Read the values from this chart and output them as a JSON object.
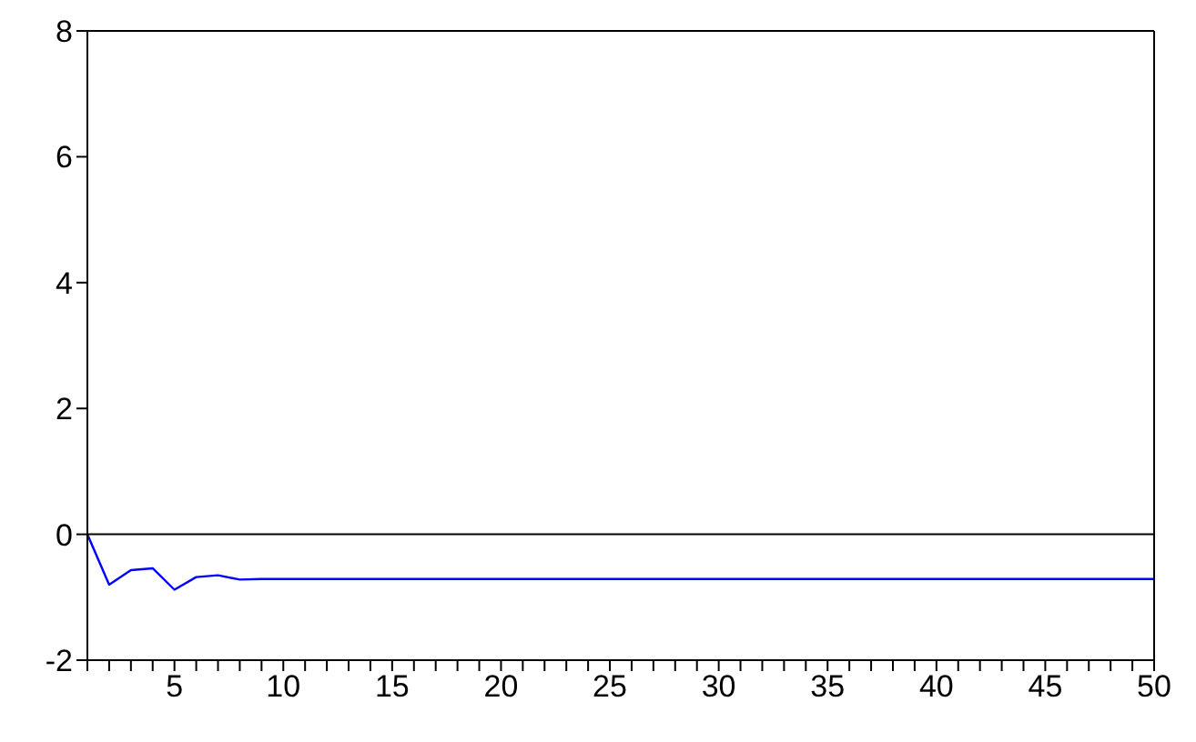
{
  "chart_data": {
    "type": "line",
    "x": [
      1,
      2,
      3,
      4,
      5,
      6,
      7,
      8,
      9,
      10,
      11,
      12,
      13,
      14,
      15,
      16,
      17,
      18,
      19,
      20,
      21,
      22,
      23,
      24,
      25,
      26,
      27,
      28,
      29,
      30,
      31,
      32,
      33,
      34,
      35,
      36,
      37,
      38,
      39,
      40,
      41,
      42,
      43,
      44,
      45,
      46,
      47,
      48,
      49,
      50
    ],
    "series": [
      {
        "color": "#0000ff",
        "values": [
          0,
          -0.8,
          -0.57,
          -0.54,
          -0.88,
          -0.68,
          -0.65,
          -0.72,
          -0.71,
          -0.71,
          -0.71,
          -0.71,
          -0.71,
          -0.71,
          -0.71,
          -0.71,
          -0.71,
          -0.71,
          -0.71,
          -0.71,
          -0.71,
          -0.71,
          -0.71,
          -0.71,
          -0.71,
          -0.71,
          -0.71,
          -0.71,
          -0.71,
          -0.71,
          -0.71,
          -0.71,
          -0.71,
          -0.71,
          -0.71,
          -0.71,
          -0.71,
          -0.71,
          -0.71,
          -0.71,
          -0.71,
          -0.71,
          -0.71,
          -0.71,
          -0.71,
          -0.71,
          -0.71,
          -0.71,
          -0.71,
          -0.71
        ]
      }
    ],
    "xlim": [
      1,
      50
    ],
    "xticks": [
      {
        "value": 1,
        "label": null
      },
      {
        "value": 2,
        "label": null
      },
      {
        "value": 3,
        "label": null
      },
      {
        "value": 4,
        "label": null
      },
      5,
      {
        "value": 6,
        "label": null
      },
      {
        "value": 7,
        "label": null
      },
      {
        "value": 8,
        "label": null
      },
      {
        "value": 9,
        "label": null
      },
      10,
      {
        "value": 11,
        "label": null
      },
      {
        "value": 12,
        "label": null
      },
      {
        "value": 13,
        "label": null
      },
      {
        "value": 14,
        "label": null
      },
      15,
      {
        "value": 16,
        "label": null
      },
      {
        "value": 17,
        "label": null
      },
      {
        "value": 18,
        "label": null
      },
      {
        "value": 19,
        "label": null
      },
      20,
      {
        "value": 21,
        "label": null
      },
      {
        "value": 22,
        "label": null
      },
      {
        "value": 23,
        "label": null
      },
      {
        "value": 24,
        "label": null
      },
      25,
      {
        "value": 26,
        "label": null
      },
      {
        "value": 27,
        "label": null
      },
      {
        "value": 28,
        "label": null
      },
      {
        "value": 29,
        "label": null
      },
      30,
      {
        "value": 31,
        "label": null
      },
      {
        "value": 32,
        "label": null
      },
      {
        "value": 33,
        "label": null
      },
      {
        "value": 34,
        "label": null
      },
      35,
      {
        "value": 36,
        "label": null
      },
      {
        "value": 37,
        "label": null
      },
      {
        "value": 38,
        "label": null
      },
      {
        "value": 39,
        "label": null
      },
      40,
      {
        "value": 41,
        "label": null
      },
      {
        "value": 42,
        "label": null
      },
      {
        "value": 43,
        "label": null
      },
      {
        "value": 44,
        "label": null
      },
      45,
      {
        "value": 46,
        "label": null
      },
      {
        "value": 47,
        "label": null
      },
      {
        "value": 48,
        "label": null
      },
      {
        "value": 49,
        "label": null
      },
      50
    ],
    "ylim": [
      -2,
      8
    ],
    "yticks": [
      -2,
      0,
      2,
      4,
      6,
      8
    ],
    "ref_lines": [
      {
        "axis": "y",
        "value": 0,
        "color": "#000000"
      }
    ],
    "grid": false,
    "legend": false,
    "marker": "none",
    "line_style": "solid"
  }
}
